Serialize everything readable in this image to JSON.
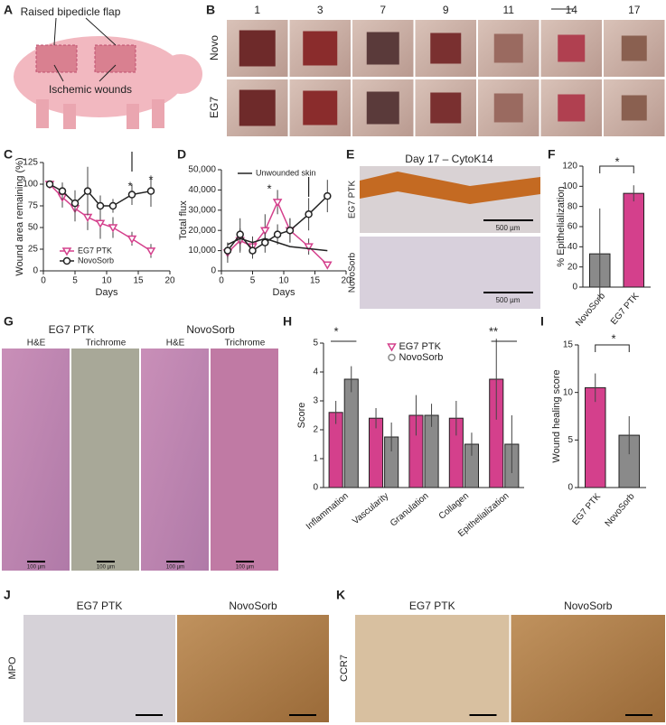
{
  "figure": {
    "letters": [
      "A",
      "B",
      "C",
      "D",
      "E",
      "F",
      "G",
      "H",
      "I",
      "J",
      "K"
    ],
    "a": {
      "flap": "Raised bipedicle flap",
      "wounds": "Ischemic wounds"
    },
    "b": {
      "days": [
        "1",
        "3",
        "7",
        "9",
        "11",
        "14",
        "17"
      ],
      "rows": [
        "Novo",
        "EG7"
      ]
    },
    "e": {
      "title": "Day 17 – CytoK14",
      "rows": [
        "EG7 PTK",
        "NovoSorb"
      ],
      "scale": "500 µm"
    },
    "g": {
      "groups": [
        "EG7 PTK",
        "NovoSorb"
      ],
      "stains": [
        "H&E",
        "Trichrome"
      ],
      "scale": "100 µm"
    },
    "j": {
      "groups": [
        "EG7 PTK",
        "NovoSorb"
      ],
      "stain": "MPO"
    },
    "k": {
      "groups": [
        "EG7 PTK",
        "NovoSorb"
      ],
      "stain": "CCR7"
    }
  },
  "chart_data": [
    {
      "type": "line",
      "xlabel": "Days",
      "ylabel": "Wound area remaining (%)",
      "xlim": [
        0,
        20
      ],
      "xticks": [
        0,
        5,
        10,
        15,
        20
      ],
      "ylim": [
        0,
        125
      ],
      "yticks": [
        0,
        25,
        50,
        75,
        100,
        125
      ],
      "legend": "lower left",
      "annotations": [
        "*",
        "*"
      ],
      "x": [
        1,
        3,
        5,
        7,
        9,
        11,
        14,
        17
      ],
      "series": [
        {
          "name": "EG7 PTK",
          "color": "#d4408c",
          "marker": "triangle",
          "values": [
            100,
            85,
            72,
            62,
            55,
            50,
            37,
            23
          ],
          "errors": [
            0,
            12,
            15,
            15,
            18,
            12,
            8,
            8
          ]
        },
        {
          "name": "NovoSorb",
          "color": "#222222",
          "marker": "circle",
          "values": [
            100,
            92,
            78,
            92,
            75,
            75,
            88,
            92
          ],
          "errors": [
            0,
            10,
            15,
            28,
            12,
            8,
            12,
            18
          ]
        }
      ]
    },
    {
      "type": "line",
      "xlabel": "Days",
      "ylabel": "Total flux",
      "xlim": [
        0,
        20
      ],
      "xticks": [
        0,
        5,
        10,
        15,
        20
      ],
      "ylim": [
        0,
        50000
      ],
      "yticks": [
        0,
        {
          "value": 10000,
          "label": "10,000"
        },
        {
          "value": 20000,
          "label": "20,000"
        },
        {
          "value": 30000,
          "label": "30,000"
        },
        {
          "value": 40000,
          "label": "40,000"
        },
        {
          "value": 50000,
          "label": "50,000"
        }
      ],
      "legend": "upper left",
      "annotations": [
        "*"
      ],
      "x": [
        1,
        3,
        5,
        7,
        9,
        11,
        14,
        17
      ],
      "series": [
        {
          "color": "#d4408c",
          "marker": "triangle",
          "values": [
            9000,
            15000,
            12000,
            20000,
            34000,
            20000,
            12000,
            3000
          ],
          "errors": [
            5000,
            6000,
            5000,
            8000,
            6000,
            6000,
            4000,
            1000
          ]
        },
        {
          "color": "#222222",
          "marker": "circle",
          "values": [
            10000,
            18000,
            10000,
            14000,
            18000,
            20000,
            28000,
            37000
          ],
          "errors": [
            4000,
            8000,
            4000,
            5000,
            5000,
            6000,
            8000,
            8000
          ]
        },
        {
          "name": "Unwounded skin",
          "color": "#222222",
          "values": [
            13000,
            16000,
            14000,
            16000,
            14000,
            12000,
            11000,
            10000
          ]
        }
      ]
    },
    {
      "type": "bar",
      "ylabel": "% Epithelialization",
      "ylim": [
        0,
        120
      ],
      "yticks": [
        0,
        20,
        40,
        60,
        80,
        100,
        120
      ],
      "annotations": [
        "*"
      ],
      "categories": [
        "NovoSorb",
        "EG7 PTK"
      ],
      "values": [
        33,
        93
      ],
      "errors": [
        45,
        8
      ],
      "colors": [
        "#8a8a8a",
        "#d4408c"
      ]
    },
    {
      "type": "grouped_bar",
      "ylabel": "Score",
      "ylim": [
        0,
        5
      ],
      "yticks": [
        0,
        1,
        2,
        3,
        4,
        5
      ],
      "legend": "upper center",
      "annotations": [
        "*",
        "**"
      ],
      "categories": [
        "Inflammation",
        "Vascularity",
        "Granulation",
        "Collagen",
        "Epithelialization"
      ],
      "series": [
        {
          "name": "EG7 PTK",
          "color": "#d4408c",
          "marker": "triangle",
          "values": [
            2.6,
            2.4,
            2.5,
            2.4,
            3.75
          ],
          "errors": [
            0.4,
            0.35,
            0.7,
            0.6,
            1.4
          ]
        },
        {
          "name": "NovoSorb",
          "color": "#8a8a8a",
          "marker": "circle",
          "values": [
            3.75,
            1.75,
            2.5,
            1.5,
            1.5
          ],
          "errors": [
            0.45,
            0.5,
            0.4,
            0.4,
            1.0
          ]
        }
      ]
    },
    {
      "type": "bar",
      "ylabel": "Wound healing score",
      "ylim": [
        0,
        15
      ],
      "yticks": [
        0,
        5,
        10,
        15
      ],
      "annotations": [
        "*"
      ],
      "categories": [
        "EG7 PTK",
        "NovoSorb"
      ],
      "values": [
        10.5,
        5.5
      ],
      "errors": [
        1.5,
        2
      ],
      "colors": [
        "#d4408c",
        "#8a8a8a"
      ]
    }
  ]
}
